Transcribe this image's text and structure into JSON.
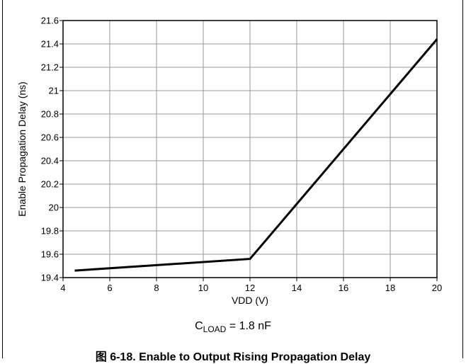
{
  "chart_data": {
    "type": "line",
    "xlabel": "VDD (V)",
    "ylabel": "Enable Propagation Delay (ns)",
    "xlim": [
      4,
      20
    ],
    "ylim": [
      19.4,
      21.6
    ],
    "x_ticks": [
      "4",
      "6",
      "8",
      "10",
      "12",
      "14",
      "16",
      "18",
      "20"
    ],
    "y_ticks": [
      "19.4",
      "19.6",
      "19.8",
      "20",
      "20.2",
      "20.4",
      "20.6",
      "20.8",
      "21",
      "21.2",
      "21.4",
      "21.6"
    ],
    "grid": true,
    "series": [
      {
        "x": [
          4.5,
          12,
          20
        ],
        "y": [
          19.46,
          19.56,
          21.44
        ]
      }
    ],
    "condition": {
      "base": "C",
      "sub": "LOAD",
      "rest": " = 1.8 nF"
    },
    "caption": "图 6-18. Enable to Output Rising Propagation Delay"
  }
}
